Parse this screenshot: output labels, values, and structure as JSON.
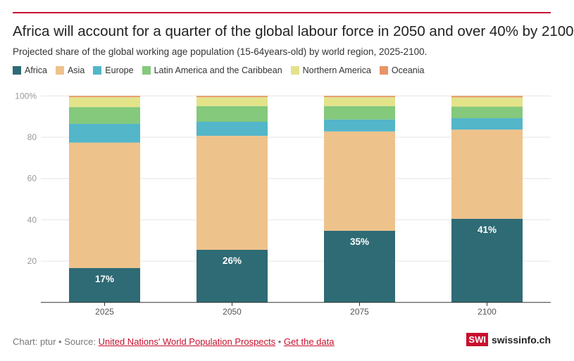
{
  "title": "Africa will account for a quarter of the global labour force in 2050 and over 40% by 2100",
  "subtitle": "Projected share of the global working age population (15-64years-old) by world region, 2025-2100.",
  "footer": {
    "prefix": "Chart: ptur • Source: ",
    "source_link": "United Nations' World Population Prospects",
    "separator": " • ",
    "data_link": "Get the data"
  },
  "logo": {
    "box": "SWI",
    "text": "swissinfo.ch"
  },
  "accent_color": "#c8102e",
  "chart_data": {
    "type": "bar",
    "stacked": true,
    "categories": [
      "2025",
      "2050",
      "2075",
      "2100"
    ],
    "series": [
      {
        "name": "Africa",
        "color": "#2e6b75",
        "values": [
          16.7,
          25.5,
          34.7,
          40.5
        ]
      },
      {
        "name": "Asia",
        "color": "#eec28b",
        "values": [
          60.7,
          55.2,
          48.1,
          43.2
        ]
      },
      {
        "name": "Europe",
        "color": "#53b6c9",
        "values": [
          9.1,
          6.8,
          5.8,
          5.5
        ]
      },
      {
        "name": "Latin America and the Caribbean",
        "color": "#84c97c",
        "values": [
          8.1,
          7.6,
          6.5,
          5.6
        ]
      },
      {
        "name": "Northern America",
        "color": "#e3e38a",
        "values": [
          4.8,
          4.3,
          4.3,
          4.5
        ]
      },
      {
        "name": "Oceania",
        "color": "#e89565",
        "values": [
          0.6,
          0.6,
          0.6,
          0.7
        ]
      }
    ],
    "data_labels": [
      "17%",
      "26%",
      "35%",
      "41%"
    ],
    "yticks": [
      "20",
      "40",
      "60",
      "80",
      "100%"
    ],
    "ylim": [
      0,
      100
    ],
    "grid": true,
    "legend": "top-left"
  }
}
